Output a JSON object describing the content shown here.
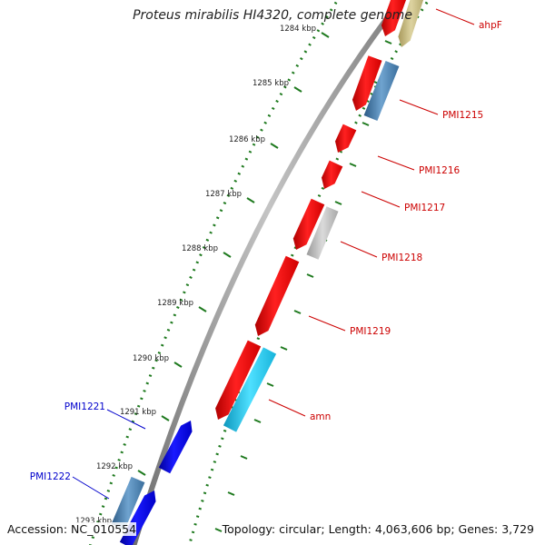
{
  "map": {
    "title": "Proteus mirabilis HI4320, complete genome",
    "accession": "Accession: NC_010554",
    "summary": "Topology: circular; Length: 4,063,606 bp; Genes: 3,729"
  },
  "colors": {
    "backbone": "#8a8a8a",
    "tick": "#1f7a1f",
    "red_gene": "#ff0000",
    "blue_gene": "#0000ee",
    "steel_gene": "#4682b4",
    "cyan_gene": "#1ec8f0",
    "gray_gene": "#b4b4b4",
    "khaki_gene": "#c8bc84",
    "label_red": "#cc0000",
    "label_blue": "#0000cc"
  },
  "ticks": [
    {
      "label": "1284 kbp"
    },
    {
      "label": "1285 kbp"
    },
    {
      "label": "1286 kbp"
    },
    {
      "label": "1287 kbp"
    },
    {
      "label": "1288 kbp"
    },
    {
      "label": "1289 kbp"
    },
    {
      "label": "1290 kbp"
    },
    {
      "label": "1291 kbp"
    },
    {
      "label": "1292 kbp"
    },
    {
      "label": "1293 kbp"
    }
  ],
  "gene_labels": [
    {
      "text": "ahpF",
      "color": "red"
    },
    {
      "text": "PMI1215",
      "color": "red"
    },
    {
      "text": "PMI1216",
      "color": "red"
    },
    {
      "text": "PMI1217",
      "color": "red"
    },
    {
      "text": "PMI1218",
      "color": "red"
    },
    {
      "text": "PMI1219",
      "color": "red"
    },
    {
      "text": "amn",
      "color": "red"
    },
    {
      "text": "PMI1221",
      "color": "blue"
    },
    {
      "text": "PMI1222",
      "color": "blue"
    }
  ]
}
